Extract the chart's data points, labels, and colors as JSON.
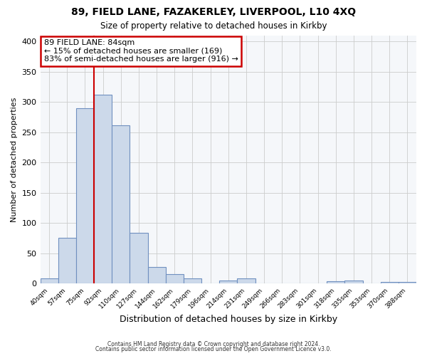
{
  "title1": "89, FIELD LANE, FAZAKERLEY, LIVERPOOL, L10 4XQ",
  "title2": "Size of property relative to detached houses in Kirkby",
  "xlabel": "Distribution of detached houses by size in Kirkby",
  "ylabel": "Number of detached properties",
  "bar_labels": [
    "40sqm",
    "57sqm",
    "75sqm",
    "92sqm",
    "110sqm",
    "127sqm",
    "144sqm",
    "162sqm",
    "179sqm",
    "196sqm",
    "214sqm",
    "231sqm",
    "249sqm",
    "266sqm",
    "283sqm",
    "301sqm",
    "318sqm",
    "335sqm",
    "353sqm",
    "370sqm",
    "388sqm"
  ],
  "bar_heights": [
    8,
    76,
    290,
    312,
    262,
    84,
    27,
    16,
    8,
    0,
    5,
    8,
    0,
    0,
    0,
    0,
    4,
    5,
    0,
    3,
    3
  ],
  "bar_color": "#ccd9ea",
  "bar_edge_color": "#7090c0",
  "vline_x_bar": 2,
  "vline_color": "#cc0000",
  "annotation_text": "89 FIELD LANE: 84sqm\n← 15% of detached houses are smaller (169)\n83% of semi-detached houses are larger (916) →",
  "annotation_box_color": "#ffffff",
  "annotation_box_edge_color": "#cc0000",
  "ylim": [
    0,
    410
  ],
  "yticks": [
    0,
    50,
    100,
    150,
    200,
    250,
    300,
    350,
    400
  ],
  "grid_color": "#cccccc",
  "footer1": "Contains HM Land Registry data © Crown copyright and database right 2024.",
  "footer2": "Contains public sector information licensed under the Open Government Licence v3.0.",
  "bg_color": "#ffffff",
  "plot_bg_color": "#f5f7fa"
}
